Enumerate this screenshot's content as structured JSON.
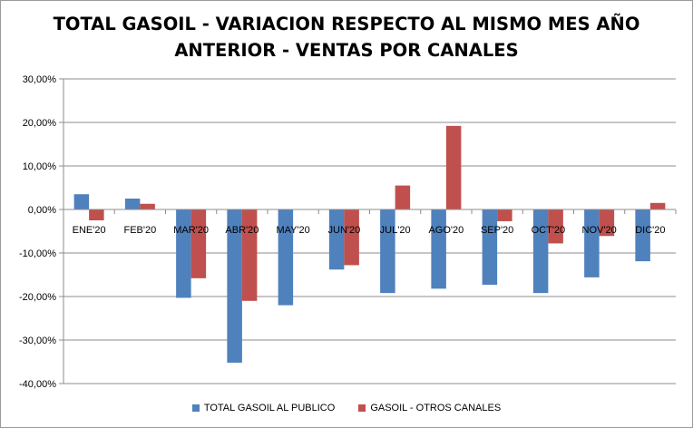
{
  "chart_data": {
    "type": "bar",
    "title_lines": [
      "TOTAL GASOIL - VARIACION RESPECTO AL MISMO MES AÑO",
      "ANTERIOR - VENTAS POR CANALES"
    ],
    "categories": [
      "ENE'20",
      "FEB'20",
      "MAR'20",
      "ABR'20",
      "MAY'20",
      "JUN'20",
      "JUL'20",
      "AGO'20",
      "SEP'20",
      "OCT'20",
      "NOV'20",
      "DIC'20"
    ],
    "series": [
      {
        "name": "TOTAL GASOIL AL PUBLICO",
        "color": "#4F81BD",
        "values": [
          3.5,
          2.5,
          -20.3,
          -35.2,
          -22.0,
          -13.8,
          -19.2,
          -18.2,
          -17.3,
          -19.2,
          -15.6,
          -11.9
        ]
      },
      {
        "name": "GASOIL - OTROS CANALES",
        "color": "#C0504D",
        "values": [
          -2.5,
          1.3,
          -15.8,
          -21.0,
          0.0,
          -12.8,
          5.5,
          19.2,
          -2.7,
          -7.8,
          -6.1,
          1.5
        ]
      }
    ],
    "ylim": [
      -40,
      30
    ],
    "yticks": [
      30,
      20,
      10,
      0,
      -10,
      -20,
      -30,
      -40
    ],
    "ytick_labels": [
      "30,00%",
      "20,00%",
      "10,00%",
      "0,00%",
      "-10,00%",
      "-20,00%",
      "-30,00%",
      "-40,00%"
    ],
    "grid": true,
    "legend_position": "bottom"
  }
}
